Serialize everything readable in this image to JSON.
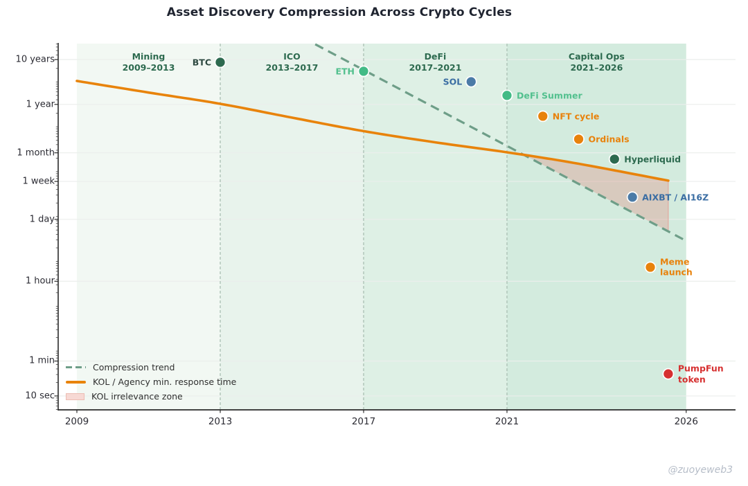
{
  "watermark": "@zuoyeweb3",
  "colors": {
    "title": "#1f2430",
    "axis_text": "#2b2b33",
    "spine": "#2a2a2a",
    "gridline": "#ebeeec",
    "separator": "#a9bfb3",
    "era_label": "#2d6a4f",
    "band_fills": [
      "#f2f8f3",
      "#e8f3ec",
      "#def0e5",
      "#d3ebde"
    ],
    "trend": "#6e9e88",
    "kol": "#e8830b",
    "zone_fill": "rgba(223,150,140,0.38)",
    "zone_edge": "#e4a79d",
    "dark_green": "#2d6a4f",
    "green": "#42bb86",
    "green_label": "#52c08e",
    "blue": "#4b7ba7",
    "blue_label": "#3a6da3",
    "orange": "#e8820c",
    "red": "#d63030",
    "btc_label": "#2f4a42",
    "point_edge": "#ffffff",
    "legend_text": "#2f2f2f",
    "watermark": "#b6bdc8"
  },
  "legend": {
    "position": "lower left",
    "items": [
      {
        "label": "Compression trend",
        "swatch": "dashed-line"
      },
      {
        "label": "KOL / Agency min. response time",
        "swatch": "solid-line"
      },
      {
        "label": "KOL irrelevance zone",
        "swatch": "filled-area"
      }
    ]
  },
  "chart_data": {
    "type": "scatter",
    "title": "Asset Discovery Compression Across Crypto Cycles",
    "xlabel": "",
    "ylabel": "",
    "grid": true,
    "y_axis": {
      "scale": "log",
      "unit": "seconds",
      "range_seconds": [
        4.9,
        740000000
      ],
      "ticks": [
        {
          "label": "10 years",
          "seconds": 315360000
        },
        {
          "label": "1 year",
          "seconds": 31536000
        },
        {
          "label": "1 month",
          "seconds": 2629800
        },
        {
          "label": "1 week",
          "seconds": 604800
        },
        {
          "label": "1 day",
          "seconds": 86400
        },
        {
          "label": "1 hour",
          "seconds": 3600
        },
        {
          "label": "1 min",
          "seconds": 60
        },
        {
          "label": "10 sec",
          "seconds": 10
        }
      ]
    },
    "x_axis": {
      "range_years": [
        2008.48,
        2027.38
      ],
      "ticks": [
        {
          "label": "2009",
          "year": 2009
        },
        {
          "label": "2013",
          "year": 2013
        },
        {
          "label": "2017",
          "year": 2017
        },
        {
          "label": "2021",
          "year": 2021
        },
        {
          "label": "2026",
          "year": 2026
        }
      ]
    },
    "eras": [
      {
        "name": "Mining",
        "range": "2009–2013",
        "start": 2009,
        "end": 2013
      },
      {
        "name": "ICO",
        "range": "2013–2017",
        "start": 2013,
        "end": 2017
      },
      {
        "name": "DeFi",
        "range": "2017–2021",
        "start": 2017,
        "end": 2021
      },
      {
        "name": "Capital Ops",
        "range": "2021–2026",
        "start": 2021,
        "end": 2026
      }
    ],
    "points": [
      {
        "label": "BTC",
        "year": 2013,
        "seconds": 274000000,
        "color": "dark_green",
        "label_color": "btc_label",
        "side": "left"
      },
      {
        "label": "ETH",
        "year": 2017,
        "seconds": 173000000,
        "color": "green",
        "label_color": "green_label",
        "side": "left"
      },
      {
        "label": "SOL",
        "year": 2020,
        "seconds": 101000000,
        "color": "blue",
        "label_color": "blue_label",
        "side": "left"
      },
      {
        "label": "DeFi Summer",
        "year": 2021,
        "seconds": 50000000,
        "color": "green",
        "label_color": "green_label",
        "side": "right"
      },
      {
        "label": "NFT cycle",
        "year": 2022,
        "seconds": 17200000,
        "color": "orange",
        "label_color": "orange",
        "side": "right"
      },
      {
        "label": "Ordinals",
        "year": 2023,
        "seconds": 5300000,
        "color": "orange",
        "label_color": "orange",
        "side": "right"
      },
      {
        "label": "Hyperliquid",
        "year": 2024,
        "seconds": 1900000,
        "color": "dark_green",
        "label_color": "era_label",
        "side": "right"
      },
      {
        "label": "AIXBT / AI16Z",
        "year": 2024.5,
        "seconds": 270000,
        "color": "blue",
        "label_color": "blue_label",
        "side": "right"
      },
      {
        "label": "Meme\nlaunch",
        "year": 2025,
        "seconds": 7400,
        "color": "orange",
        "label_color": "orange",
        "side": "right"
      },
      {
        "label": "PumpFun\ntoken",
        "year": 2025.5,
        "seconds": 31,
        "color": "red",
        "label_color": "red",
        "side": "right"
      }
    ],
    "trend_line": {
      "name": "Compression trend",
      "style": "dashed",
      "points": [
        {
          "year": 2015.65,
          "seconds": 690000000
        },
        {
          "year": 2026,
          "seconds": 28600
        }
      ]
    },
    "kol_curve": {
      "name": "KOL / Agency min. response time",
      "style": "solid",
      "points": [
        {
          "year": 2009,
          "seconds": 105000000
        },
        {
          "year": 2011,
          "seconds": 58000000
        },
        {
          "year": 2013,
          "seconds": 32500000
        },
        {
          "year": 2015,
          "seconds": 16000000
        },
        {
          "year": 2017,
          "seconds": 8000000
        },
        {
          "year": 2019,
          "seconds": 4500000
        },
        {
          "year": 2021,
          "seconds": 2700000
        },
        {
          "year": 2023,
          "seconds": 1500000
        },
        {
          "year": 2025.5,
          "seconds": 630000
        }
      ]
    },
    "kol_irrelevance_zone": {
      "name": "KOL irrelevance zone",
      "from_year": 2021.4,
      "to_year": 2025.5,
      "top_boundary": "kol_curve",
      "bottom_boundary": "trend_line"
    }
  }
}
